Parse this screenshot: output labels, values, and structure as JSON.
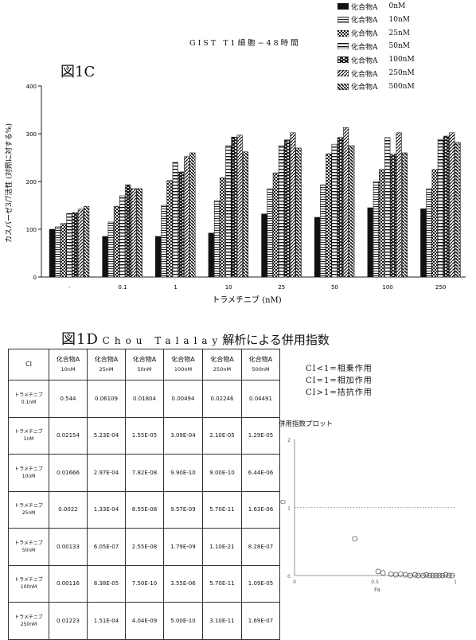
{
  "figure_1c": {
    "label": "図1C",
    "chart_data": {
      "type": "bar",
      "title": "GIST T1細胞−48時間",
      "xlabel": "トラメチニブ (nM)",
      "ylabel": "カスパーゼ3/7活性 (対照に対する%)",
      "ylim": [
        0,
        400
      ],
      "yticks": [
        "0",
        "100",
        "200",
        "300",
        "400"
      ],
      "categories": [
        "-",
        "0.1",
        "1",
        "10",
        "25",
        "50",
        "100",
        "250"
      ],
      "legend_position": "top-right",
      "series": [
        {
          "name": "化合物A",
          "conc": "0nM",
          "pattern": "solid",
          "values": [
            100,
            85,
            85,
            92,
            132,
            125,
            145,
            143
          ]
        },
        {
          "name": "化合物A",
          "conc": "10nM",
          "pattern": "hlines",
          "values": [
            105,
            115,
            150,
            160,
            185,
            193,
            200,
            185
          ]
        },
        {
          "name": "化合物A",
          "conc": "25nM",
          "pattern": "checker",
          "values": [
            112,
            148,
            202,
            208,
            218,
            258,
            225,
            225
          ]
        },
        {
          "name": "化合物A",
          "conc": "50nM",
          "pattern": "hlines-wide",
          "values": [
            133,
            170,
            240,
            275,
            275,
            278,
            292,
            288
          ]
        },
        {
          "name": "化合物A",
          "conc": "100nM",
          "pattern": "dashes",
          "values": [
            135,
            193,
            220,
            293,
            287,
            292,
            257,
            295
          ]
        },
        {
          "name": "化合物A",
          "conc": "250nM",
          "pattern": "diag-right",
          "values": [
            142,
            185,
            252,
            297,
            302,
            313,
            302,
            302
          ]
        },
        {
          "name": "化合物A",
          "conc": "500nM",
          "pattern": "diag-left",
          "values": [
            148,
            185,
            260,
            262,
            270,
            275,
            260,
            282
          ]
        }
      ]
    }
  },
  "figure_1d": {
    "label": "図1D",
    "title_latin": "Chou Talalay",
    "title_jp": "解析による併用指数",
    "table": {
      "corner": "CI",
      "columns": [
        {
          "name": "化合物A",
          "conc": "10nM"
        },
        {
          "name": "化合物A",
          "conc": "25nM"
        },
        {
          "name": "化合物A",
          "conc": "50nM"
        },
        {
          "name": "化合物A",
          "conc": "100nM"
        },
        {
          "name": "化合物A",
          "conc": "250nM"
        },
        {
          "name": "化合物A",
          "conc": "500nM"
        }
      ],
      "rows": [
        {
          "drug": "トラメチニブ",
          "conc": "0.1nM",
          "values": [
            "0.544",
            "0.06109",
            "0.01804",
            "0.00494",
            "0.02246",
            "0.04491"
          ]
        },
        {
          "drug": "トラメチニブ",
          "conc": "1nM",
          "values": [
            "0.02154",
            "5.23E-04",
            "1.55E-05",
            "3.09E-04",
            "2.10E-05",
            "1.29E-05"
          ]
        },
        {
          "drug": "トラメチニブ",
          "conc": "10nM",
          "values": [
            "0.01666",
            "2.97E-04",
            "7.82E-08",
            "9.90E-10",
            "9.00E-10",
            "6.44E-06"
          ]
        },
        {
          "drug": "トラメチニブ",
          "conc": "25nM",
          "values": [
            "0.0022",
            "1.33E-04",
            "8.55E-08",
            "9.57E-09",
            "5.70E-11",
            "1.63E-06"
          ]
        },
        {
          "drug": "トラメチニブ",
          "conc": "50nM",
          "values": [
            "0.00133",
            "6.05E-07",
            "2.55E-08",
            "1.79E-09",
            "1.10E-21",
            "8.28E-07"
          ]
        },
        {
          "drug": "トラメチニブ",
          "conc": "100nM",
          "values": [
            "0.00116",
            "8.38E-05",
            "7.50E-10",
            "3.55E-06",
            "5.70E-11",
            "1.09E-05"
          ]
        },
        {
          "drug": "トラメチニブ",
          "conc": "250nM",
          "values": [
            "0.01223",
            "1.51E-04",
            "4.04E-09",
            "5.00E-10",
            "3.10E-11",
            "1.69E-07"
          ]
        }
      ]
    },
    "ci_legend": [
      "CI<1=相乗作用",
      "CI=1=相加作用",
      "CI>1=拮抗作用"
    ],
    "plot": {
      "chart_data": {
        "type": "scatter",
        "title": "併用指数プロット",
        "xlabel": "Fa",
        "ylabel": "CI",
        "xlim": [
          0,
          1
        ],
        "ylim": [
          0,
          2
        ],
        "xticks": [
          "0",
          "0.5",
          "1"
        ],
        "yticks": [
          "0",
          "1",
          "2"
        ],
        "reference_line_y": 1,
        "points": [
          [
            0.375,
            0.54
          ],
          [
            0.52,
            0.06
          ],
          [
            0.55,
            0.04
          ],
          [
            0.6,
            0.02
          ],
          [
            0.63,
            0.01
          ],
          [
            0.66,
            0.02
          ],
          [
            0.69,
            0.01
          ],
          [
            0.72,
            0.0
          ],
          [
            0.75,
            0.01
          ],
          [
            0.77,
            0.0
          ],
          [
            0.8,
            0.0
          ],
          [
            0.82,
            0.01
          ],
          [
            0.84,
            0.0
          ],
          [
            0.86,
            0.0
          ],
          [
            0.88,
            0.0
          ],
          [
            0.9,
            0.0
          ],
          [
            0.92,
            0.0
          ],
          [
            0.94,
            0.01
          ],
          [
            0.96,
            0.0
          ],
          [
            0.98,
            0.0
          ]
        ]
      }
    }
  }
}
